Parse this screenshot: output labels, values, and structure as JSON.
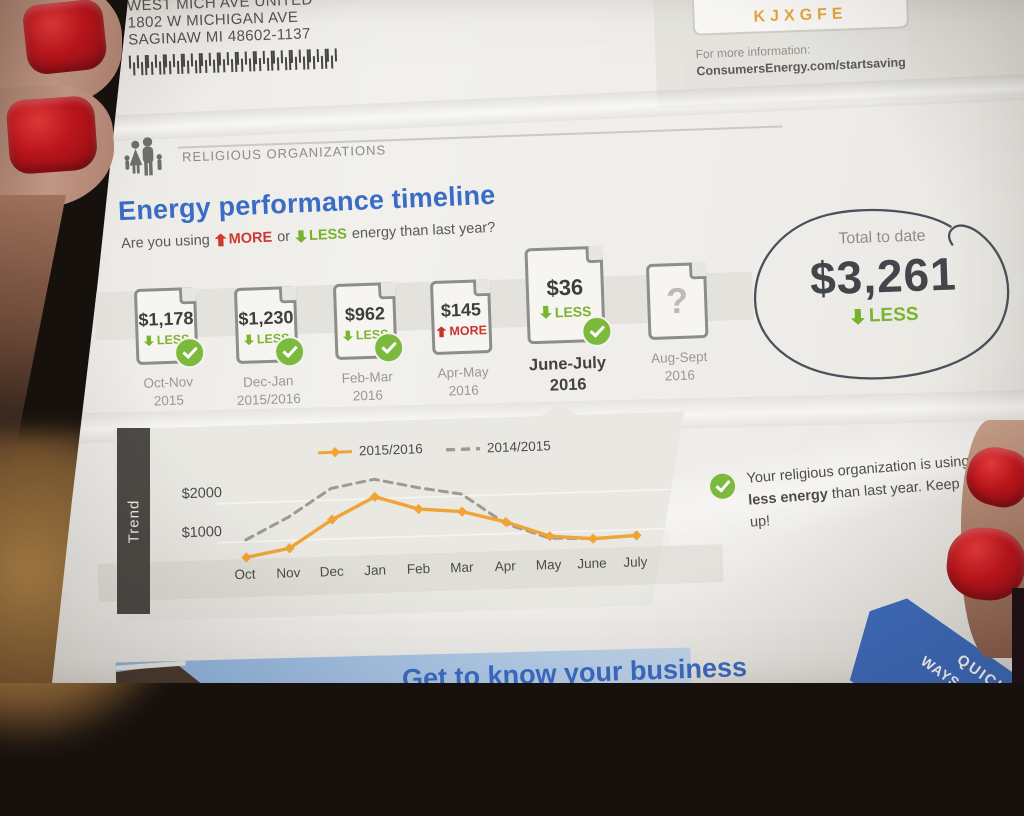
{
  "page": {
    "mailing": {
      "line1": "WEST MICH AVE UNITED",
      "line2": "1802 W MICHIGAN AVE",
      "line3": "SAGINAW MI 48602-1137"
    },
    "code_box": {
      "code": "KJXGFE"
    },
    "info_box": {
      "label": "For more information:",
      "url": "ConsumersEnergy.com/startsaving"
    },
    "section_label": "RELIGIOUS ORGANIZATIONS",
    "heading": {
      "title": "Energy performance timeline",
      "q_prefix": "Are you using",
      "q_more": "MORE",
      "q_or": "or",
      "q_less": "LESS",
      "q_suffix": "energy than last year?"
    },
    "timeline": {
      "items": [
        {
          "amount": "$1,178",
          "direction": "LESS",
          "trend": "down",
          "period": "Oct-Nov",
          "year": "2015",
          "checked": true,
          "current": false,
          "future": false
        },
        {
          "amount": "$1,230",
          "direction": "LESS",
          "trend": "down",
          "period": "Dec-Jan",
          "year": "2015/2016",
          "checked": true,
          "current": false,
          "future": false
        },
        {
          "amount": "$962",
          "direction": "LESS",
          "trend": "down",
          "period": "Feb-Mar",
          "year": "2016",
          "checked": true,
          "current": false,
          "future": false
        },
        {
          "amount": "$145",
          "direction": "MORE",
          "trend": "up",
          "period": "Apr-May",
          "year": "2016",
          "checked": false,
          "current": false,
          "future": false
        },
        {
          "amount": "$36",
          "direction": "LESS",
          "trend": "down",
          "period": "June-July",
          "year": "2016",
          "checked": true,
          "current": true,
          "future": false
        },
        {
          "amount": "?",
          "direction": "",
          "trend": "",
          "period": "Aug-Sept",
          "year": "2016",
          "checked": false,
          "current": false,
          "future": true
        }
      ],
      "total": {
        "label": "Total to date",
        "amount": "$3,261",
        "direction": "LESS"
      }
    },
    "trend_label": "Trend",
    "message": {
      "pre": "Your religious organization is using ",
      "bold": "less energy",
      "post": " than last year. Keep it up!"
    },
    "footer": {
      "heading_partial": "Get to know your business",
      "ribbon": [
        "QUICK",
        "WAYS TO SAVE"
      ]
    }
  },
  "chart_data": {
    "type": "line",
    "title": "Trend",
    "x": [
      "Oct",
      "Nov",
      "Dec",
      "Jan",
      "Feb",
      "Mar",
      "Apr",
      "May",
      "June",
      "July"
    ],
    "series": [
      {
        "name": "2015/2016",
        "style": "solid",
        "color": "#f0a437",
        "values": [
          600,
          800,
          1500,
          2050,
          1700,
          1600,
          1300,
          900,
          800,
          850
        ]
      },
      {
        "name": "2014/2015",
        "style": "dashed",
        "color": "#9b9a94",
        "values": [
          1050,
          1600,
          2300,
          2500,
          2250,
          2050,
          1250,
          850,
          800,
          850
        ]
      }
    ],
    "yticks": [
      "$2000",
      "$1000"
    ],
    "ylim": [
      0,
      2800
    ],
    "grid": true,
    "legend_position": "top"
  },
  "colors": {
    "accent_blue": "#3a6cc6",
    "green": "#76b22c",
    "red": "#cc3a32",
    "orange": "#f0a437",
    "ribbon_blue": "#3e6dbf",
    "code_orange": "#e4a43c"
  }
}
